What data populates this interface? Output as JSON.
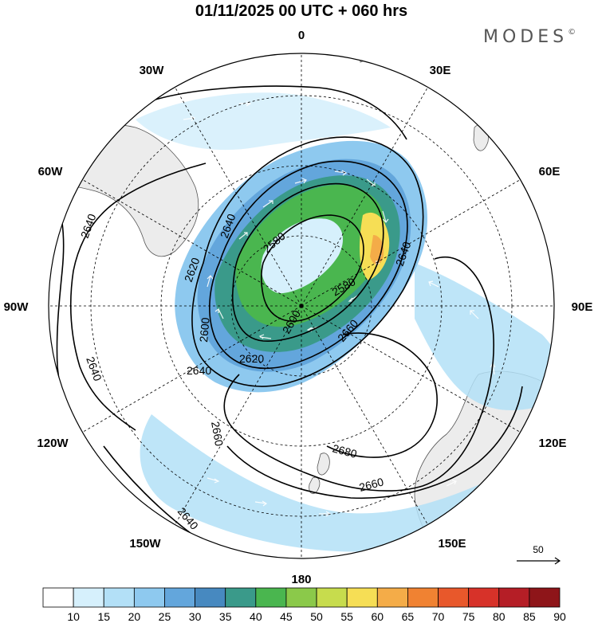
{
  "title": "01/11/2025  00 UTC  + 060 hrs",
  "brand": "MODES",
  "brand_mark": "©",
  "longitude_labels": {
    "lon_0": "0",
    "lon_30e": "30E",
    "lon_60e": "60E",
    "lon_90e": "90E",
    "lon_120e": "120E",
    "lon_150e": "150E",
    "lon_180": "180",
    "lon_150w": "150W",
    "lon_120w": "120W",
    "lon_90w": "90W",
    "lon_60w": "60W",
    "lon_30w": "30W"
  },
  "contour_labels": {
    "c1": "2640",
    "c2": "2640",
    "c3": "2580",
    "c4": "2620",
    "c5": "2600",
    "c6": "2580",
    "c7": "2640",
    "c8": "2600",
    "c9": "2660",
    "c10": "2620",
    "c11": "2640",
    "c12": "2640",
    "c13": "2660",
    "c14": "2680",
    "c15": "2660",
    "c16": "2640"
  },
  "vector_reference": "50",
  "colorbar": {
    "ticks": [
      "10",
      "15",
      "20",
      "25",
      "30",
      "35",
      "40",
      "45",
      "50",
      "55",
      "60",
      "65",
      "70",
      "75",
      "80",
      "85",
      "90"
    ],
    "colors": [
      "#ffffff",
      "#d6f0fc",
      "#b3e0f7",
      "#8ec9ef",
      "#63a6dc",
      "#4789c0",
      "#3a9a8a",
      "#4ab64f",
      "#8bc94a",
      "#c7dc4d",
      "#f6de55",
      "#f4ac48",
      "#f08232",
      "#e8582b",
      "#d73229",
      "#b51e26",
      "#8e1519"
    ]
  },
  "colors": {
    "land": "#ececec",
    "contour": "#000000",
    "graticule": "#000000"
  }
}
